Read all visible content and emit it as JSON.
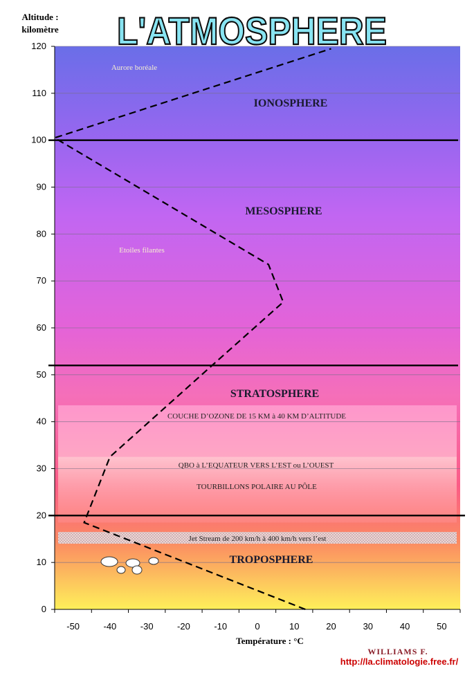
{
  "header": {
    "title": "L'ATMOSPHERE",
    "ylabel_line1": "Altitude :",
    "ylabel_line2": "kilomètre"
  },
  "chart_data": {
    "type": "line",
    "title": "L'ATMOSPHERE",
    "xlabel": "Température : °C",
    "ylabel": "Altitude : kilomètre",
    "xlim": [
      -55,
      55
    ],
    "ylim": [
      0,
      120
    ],
    "x_ticks": [
      "-50",
      "-40",
      "-30",
      "-20",
      "-10",
      "0",
      "10",
      "20",
      "30",
      "40",
      "50"
    ],
    "y_ticks": [
      "0",
      "10",
      "20",
      "30",
      "40",
      "50",
      "60",
      "70",
      "80",
      "90",
      "100",
      "110",
      "120"
    ],
    "grid": true,
    "series": [
      {
        "x": [
          13,
          -47,
          -40,
          -13,
          7,
          3,
          -55,
          20
        ],
        "y": [
          0,
          18.5,
          32.5,
          51.5,
          65.5,
          73.5,
          100.5,
          119.5
        ]
      }
    ],
    "boundaries": [
      20,
      52,
      100
    ],
    "layers": [
      {
        "name": "IONOSPHERE",
        "x": 0,
        "y": 108
      },
      {
        "name": "MESOSPHERE",
        "x": 0,
        "y": 85
      },
      {
        "name": "STRATOSPHERE",
        "x": 0,
        "y": 46
      },
      {
        "name": "TROPOSPHERE",
        "x": 0,
        "y": 10
      }
    ],
    "annotations": {
      "aurora": "Aurore boréale",
      "shooting_stars": "Etoiles filantes",
      "ozone": "COUCHE D’OZONE DE 15 KM à 40 KM D’ALTITUDE",
      "qbo": "QBO à L’EQUATEUR VERS L’EST ou L’OUEST",
      "polar": "TOURBILLONS POLAIRE AU PÔLE",
      "jet_stream": "Jet Stream   de 200 km/h à 400 km/h vers l’est"
    },
    "bands": {
      "ozone": [
        32.5,
        43.5
      ],
      "qbo": [
        18.5,
        32.5
      ],
      "jet_stream": [
        14,
        16.5
      ]
    }
  },
  "footer": {
    "author": "WILLIAMS F.",
    "url": "http://la.climatologie.free.fr/"
  }
}
